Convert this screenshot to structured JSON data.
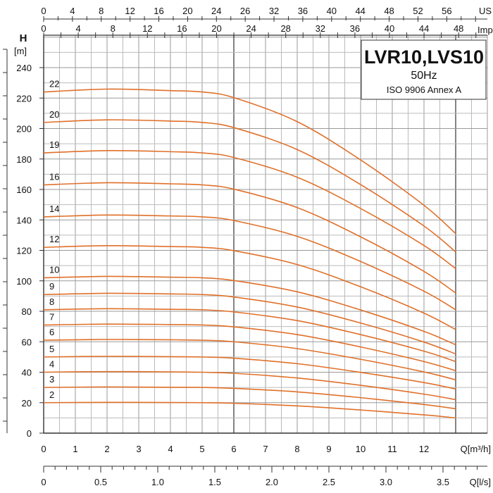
{
  "chart_data": {
    "type": "line",
    "title": "LVR10,LVS10",
    "subtitle": "50Hz",
    "note": "ISO 9906 Annex A",
    "ylabel": "H",
    "yunit": "[m]",
    "xlabel": "Q[m³/h]",
    "xlabel_ls": "Q[l/s]",
    "xlabel_us": "US",
    "xlabel_imp": "Imp",
    "xlim": [
      0,
      14
    ],
    "ylim": [
      0,
      260
    ],
    "grid": true,
    "line_color": "#e0702a",
    "y_ticks": [
      "0",
      "20",
      "40",
      "60",
      "80",
      "100",
      "120",
      "140",
      "160",
      "180",
      "200",
      "220",
      "240"
    ],
    "x_ticks": [
      "0",
      "1",
      "2",
      "3",
      "4",
      "5",
      "6",
      "7",
      "8",
      "9",
      "10",
      "11",
      "12"
    ],
    "ls_ticks": [
      "0",
      "0.5",
      "1.0",
      "1.5",
      "2.0",
      "2.5",
      "3.0",
      "3.5"
    ],
    "us_ticks": [
      "0",
      "4",
      "8",
      "12",
      "16",
      "20",
      "24",
      "26",
      "32",
      "36",
      "40",
      "44",
      "48",
      "52",
      "56"
    ],
    "imp_ticks": [
      "0",
      "4",
      "8",
      "12",
      "16",
      "20",
      "24",
      "28",
      "32",
      "36",
      "40",
      "44",
      "48"
    ],
    "x": [
      0,
      2,
      4,
      5,
      6,
      8,
      10,
      12,
      13
    ],
    "series": [
      {
        "name": "2",
        "values": [
          20,
          20.2,
          20.1,
          20,
          19.6,
          17.9,
          15.2,
          12,
          10
        ]
      },
      {
        "name": "3",
        "values": [
          30,
          30.3,
          30.1,
          30,
          29.4,
          27.1,
          23.3,
          18.8,
          16
        ]
      },
      {
        "name": "4",
        "values": [
          40,
          40.4,
          40.2,
          40,
          39.3,
          36.2,
          31.4,
          25.6,
          22
        ]
      },
      {
        "name": "5",
        "values": [
          50,
          50.4,
          50.2,
          50,
          49.2,
          45.6,
          39.9,
          33.2,
          29
        ]
      },
      {
        "name": "6",
        "values": [
          61,
          61.5,
          61.3,
          61,
          60,
          55.5,
          48.5,
          40.2,
          35
        ]
      },
      {
        "name": "7",
        "values": [
          71,
          71.6,
          71.3,
          71,
          69.8,
          64.7,
          56.6,
          47,
          41
        ]
      },
      {
        "name": "8",
        "values": [
          81,
          81.7,
          81.3,
          81,
          79.6,
          73.9,
          64.7,
          53.8,
          47
        ]
      },
      {
        "name": "9",
        "values": [
          91,
          91.8,
          91.4,
          91,
          89.4,
          82.8,
          72.3,
          59.8,
          52
        ]
      },
      {
        "name": "10",
        "values": [
          102,
          102.9,
          102.4,
          102,
          100.2,
          92.8,
          80.9,
          66.8,
          58
        ]
      },
      {
        "name": "12",
        "values": [
          122,
          123.1,
          122.5,
          122,
          119.8,
          110.7,
          96.1,
          78.8,
          68
        ]
      },
      {
        "name": "14",
        "values": [
          142,
          143.2,
          142.6,
          142,
          139.6,
          129.2,
          112.7,
          93.2,
          81
        ]
      },
      {
        "name": "16",
        "values": [
          163,
          164.4,
          163.7,
          163,
          160.2,
          148.1,
          128.9,
          106.2,
          92
        ]
      },
      {
        "name": "19",
        "values": [
          184,
          185.5,
          184.8,
          184,
          181,
          168,
          147.5,
          123.2,
          108
        ]
      },
      {
        "name": "20",
        "values": [
          204,
          205.7,
          204.9,
          204,
          200.6,
          186.2,
          163.2,
          136,
          119
        ]
      },
      {
        "name": "22",
        "values": [
          224,
          225.9,
          224.9,
          224,
          220.3,
          204.5,
          179.4,
          149.6,
          131
        ]
      }
    ]
  }
}
